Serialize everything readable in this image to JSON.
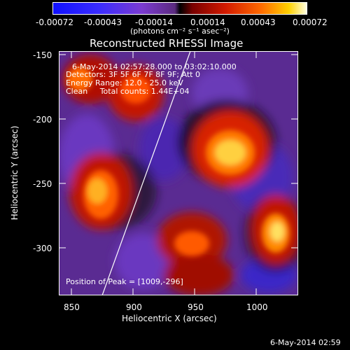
{
  "colorbar": {
    "tick_labels": [
      "-0.00072",
      "-0.00043",
      "-0.00014",
      "0.00014",
      "0.00043",
      "0.00072"
    ],
    "units": "(photons cm⁻² s⁻¹ asec⁻²)"
  },
  "title": "Reconstructed RHESSI Image",
  "info": {
    "time_range": "6-May-2014 02:57:28.000 to 03:02:10.000",
    "detectors": "Detectors: 3F 5F 6F 7F 8F 9F; Att 0",
    "energy": "Energy Range: 12.0 - 25.0 keV",
    "method_counts": "Clean     Total counts: 1.44E+04"
  },
  "peak": "Position of Peak = [1009,-296]",
  "x_axis": {
    "label": "Heliocentric X (arcsec)",
    "ticks": [
      "850",
      "900",
      "950",
      "1000"
    ]
  },
  "y_axis": {
    "label": "Heliocentric Y (arcsec)",
    "ticks": [
      "-150",
      "-200",
      "-250",
      "-300"
    ]
  },
  "footer_date": "6-May-2014 02:59"
}
